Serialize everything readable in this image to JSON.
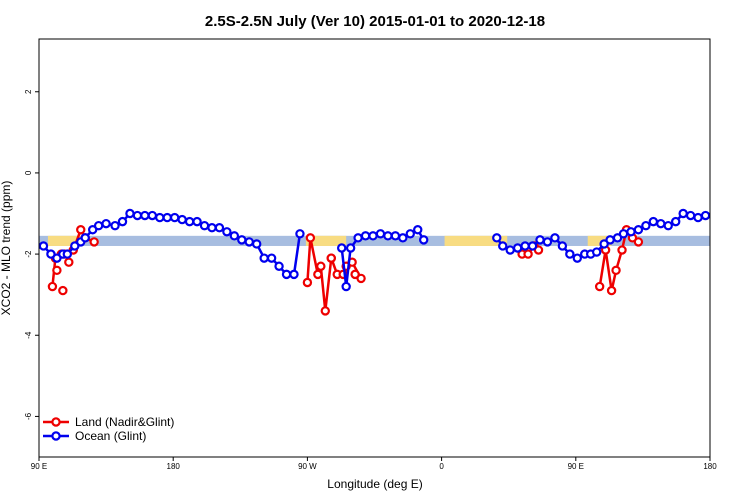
{
  "chart_data": {
    "type": "line",
    "title": "2.5S-2.5N July (Ver 10)   2015-01-01 to 2020-12-18",
    "xlabel": "Longitude (deg E)",
    "ylabel": "XCO2 - MLO trend (ppm)",
    "xlim": [
      90,
      540
    ],
    "ylim": [
      -7,
      3.3
    ],
    "x_ticks": [
      {
        "value": 90,
        "label": "90 E"
      },
      {
        "value": 180,
        "label": "180"
      },
      {
        "value": 270,
        "label": "90 W"
      },
      {
        "value": 360,
        "label": "0"
      },
      {
        "value": 450,
        "label": "90 E"
      },
      {
        "value": 540,
        "label": "180"
      }
    ],
    "y_ticks": [
      {
        "value": 2,
        "label": "2"
      },
      {
        "value": 0,
        "label": "0"
      },
      {
        "value": -2,
        "label": "-2"
      },
      {
        "value": -4,
        "label": "-4"
      },
      {
        "value": -6,
        "label": "-6"
      }
    ],
    "band": {
      "y_low": -1.8,
      "y_high": -1.55,
      "ocean_color": "#a7bde0",
      "land_color": "#f8dc82"
    },
    "land_band_ranges": [
      [
        96,
        119
      ],
      [
        269,
        296
      ],
      [
        362,
        404
      ],
      [
        458,
        474
      ]
    ],
    "legend": {
      "position": "bottom-left"
    },
    "series": [
      {
        "name": "Land (Nadir&Glint)",
        "color": "#ee0000",
        "segments": [
          [
            [
              99,
              -2.8
            ],
            [
              101,
              -2.1
            ],
            [
              105,
              -2.0
            ],
            [
              107,
              -2.0
            ],
            [
              113,
              -1.9
            ],
            [
              118,
              -1.4
            ],
            [
              121,
              -1.6
            ],
            [
              127,
              -1.7
            ]
          ],
          [
            [
              270,
              -2.7
            ],
            [
              272,
              -1.6
            ],
            [
              277,
              -2.5
            ],
            [
              279,
              -2.3
            ],
            [
              282,
              -3.4
            ],
            [
              286,
              -2.1
            ],
            [
              290,
              -2.5
            ],
            [
              294,
              -2.5
            ],
            [
              296,
              -2.3
            ],
            [
              300,
              -2.2
            ],
            [
              306,
              -2.6
            ]
          ],
          [
            [
              414,
              -2.0
            ],
            [
              418,
              -2.0
            ],
            [
              422,
              -1.8
            ],
            [
              425,
              -1.9
            ]
          ],
          [
            [
              466,
              -2.8
            ],
            [
              470,
              -1.9
            ],
            [
              474,
              -2.9
            ],
            [
              477,
              -2.4
            ],
            [
              481,
              -1.9
            ],
            [
              484,
              -1.4
            ],
            [
              488,
              -1.6
            ],
            [
              492,
              -1.7
            ]
          ]
        ],
        "points_outside": [
          [
            102,
            -2.4
          ],
          [
            106,
            -2.9
          ],
          [
            110,
            -2.2
          ],
          [
            286,
            -2.1
          ],
          [
            302,
            -2.5
          ]
        ]
      },
      {
        "name": "Ocean (Glint)",
        "color": "#0000ee",
        "segments": [
          [
            [
              93,
              -1.8
            ],
            [
              98,
              -2.0
            ],
            [
              102,
              -2.1
            ],
            [
              106,
              -2.0
            ],
            [
              109,
              -2.0
            ],
            [
              114,
              -1.8
            ],
            [
              118,
              -1.7
            ],
            [
              121,
              -1.6
            ],
            [
              126,
              -1.4
            ],
            [
              130,
              -1.3
            ],
            [
              135,
              -1.25
            ],
            [
              141,
              -1.3
            ],
            [
              146,
              -1.2
            ],
            [
              151,
              -1.0
            ],
            [
              156,
              -1.05
            ],
            [
              161,
              -1.05
            ],
            [
              166,
              -1.05
            ],
            [
              171,
              -1.1
            ],
            [
              176,
              -1.1
            ],
            [
              181,
              -1.1
            ],
            [
              186,
              -1.15
            ],
            [
              191,
              -1.2
            ],
            [
              196,
              -1.2
            ],
            [
              201,
              -1.3
            ],
            [
              206,
              -1.35
            ],
            [
              211,
              -1.35
            ],
            [
              216,
              -1.45
            ],
            [
              221,
              -1.55
            ],
            [
              226,
              -1.65
            ],
            [
              231,
              -1.7
            ],
            [
              236,
              -1.75
            ],
            [
              241,
              -2.1
            ],
            [
              246,
              -2.1
            ],
            [
              251,
              -2.3
            ],
            [
              256,
              -2.5
            ],
            [
              261,
              -2.5
            ],
            [
              265,
              -1.5
            ]
          ],
          [
            [
              293,
              -1.85
            ],
            [
              296,
              -2.8
            ],
            [
              299,
              -1.85
            ],
            [
              304,
              -1.6
            ],
            [
              309,
              -1.55
            ],
            [
              314,
              -1.55
            ],
            [
              319,
              -1.5
            ],
            [
              324,
              -1.55
            ],
            [
              329,
              -1.55
            ],
            [
              334,
              -1.6
            ],
            [
              339,
              -1.5
            ],
            [
              344,
              -1.4
            ],
            [
              348,
              -1.65
            ]
          ],
          [
            [
              397,
              -1.6
            ],
            [
              401,
              -1.8
            ],
            [
              406,
              -1.9
            ],
            [
              411,
              -1.85
            ],
            [
              416,
              -1.8
            ],
            [
              421,
              -1.8
            ],
            [
              426,
              -1.65
            ],
            [
              431,
              -1.7
            ],
            [
              436,
              -1.6
            ],
            [
              441,
              -1.8
            ],
            [
              446,
              -2.0
            ],
            [
              451,
              -2.1
            ],
            [
              456,
              -2.0
            ],
            [
              460,
              -2.0
            ],
            [
              464,
              -1.95
            ],
            [
              469,
              -1.75
            ],
            [
              473,
              -1.65
            ],
            [
              478,
              -1.6
            ],
            [
              482,
              -1.5
            ],
            [
              487,
              -1.45
            ],
            [
              492,
              -1.4
            ],
            [
              497,
              -1.3
            ],
            [
              502,
              -1.2
            ],
            [
              507,
              -1.25
            ],
            [
              512,
              -1.3
            ],
            [
              517,
              -1.2
            ],
            [
              522,
              -1.0
            ],
            [
              527,
              -1.05
            ],
            [
              532,
              -1.1
            ],
            [
              537,
              -1.05
            ]
          ]
        ]
      }
    ]
  }
}
